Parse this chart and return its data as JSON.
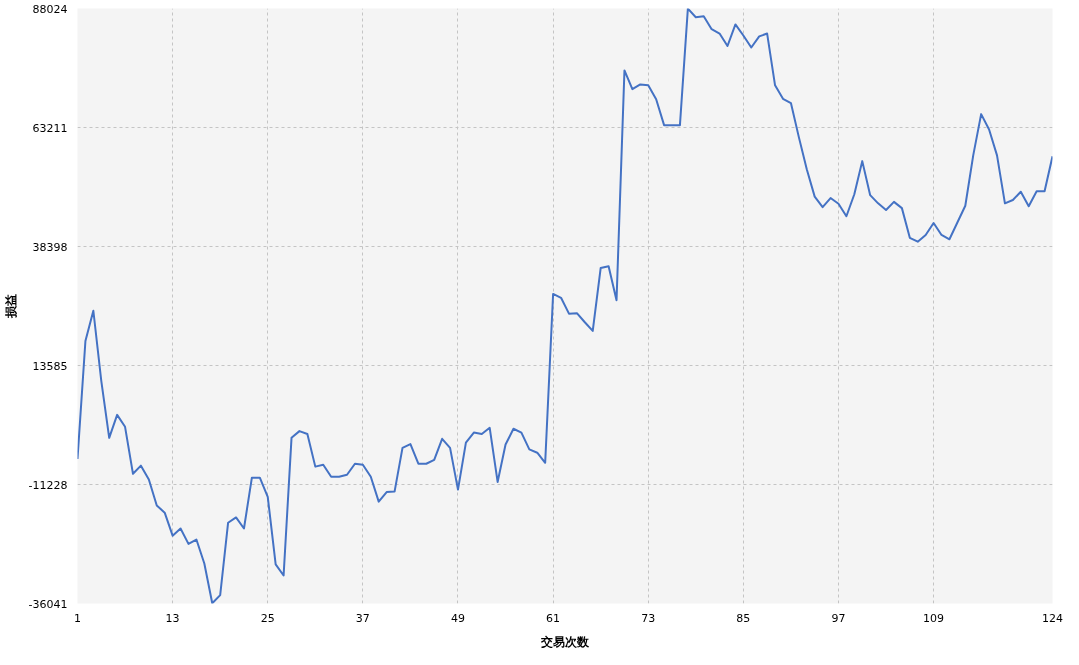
{
  "chart_data": {
    "type": "line",
    "xlabel": "交易次数",
    "ylabel": "损益",
    "color": "#4472c4",
    "line_style": "solid",
    "grid": true,
    "x": [
      1,
      2,
      3,
      4,
      5,
      6,
      7,
      8,
      9,
      10,
      11,
      12,
      13,
      14,
      15,
      16,
      17,
      18,
      19,
      20,
      21,
      22,
      23,
      24,
      25,
      26,
      27,
      28,
      29,
      30,
      31,
      32,
      33,
      34,
      35,
      36,
      37,
      38,
      39,
      40,
      41,
      42,
      43,
      44,
      45,
      46,
      47,
      48,
      49,
      50,
      51,
      52,
      53,
      54,
      55,
      56,
      57,
      58,
      59,
      60,
      61,
      62,
      63,
      64,
      65,
      66,
      67,
      68,
      69,
      70,
      71,
      72,
      73,
      74,
      75,
      76,
      77,
      78,
      79,
      80,
      81,
      82,
      83,
      84,
      85,
      86,
      87,
      88,
      89,
      90,
      91,
      92,
      93,
      94,
      95,
      96,
      97,
      98,
      99,
      100,
      101,
      102,
      103,
      104,
      105,
      106,
      107,
      108,
      109,
      110,
      111,
      112,
      113,
      114,
      115,
      116,
      117,
      118,
      119,
      120,
      121,
      122,
      123,
      124
    ],
    "values": [
      -5900,
      18700,
      25000,
      10400,
      -1500,
      3300,
      800,
      -9000,
      -7300,
      -10200,
      -15600,
      -17100,
      -21900,
      -20400,
      -23600,
      -22700,
      -27700,
      -36000,
      -34300,
      -19200,
      -18100,
      -20400,
      -9800,
      -9800,
      -13800,
      -27900,
      -30200,
      -1500,
      -100,
      -700,
      -7500,
      -7100,
      -9600,
      -9600,
      -9200,
      -6900,
      -7100,
      -9600,
      -14800,
      -12800,
      -12700,
      -3600,
      -2800,
      -6900,
      -6900,
      -6100,
      -1700,
      -3600,
      -12300,
      -2500,
      -400,
      -700,
      600,
      -10700,
      -2900,
      400,
      -400,
      -3900,
      -4600,
      -6700,
      28500,
      27700,
      24400,
      24500,
      22600,
      20800,
      33900,
      34300,
      27200,
      75100,
      71200,
      72200,
      72000,
      69100,
      63700,
      63700,
      63700,
      88000,
      86200,
      86400,
      83700,
      82800,
      80200,
      84700,
      82400,
      79900,
      82200,
      82800,
      72000,
      69200,
      68300,
      61200,
      54500,
      48800,
      46600,
      48500,
      47300,
      44700,
      49300,
      56200,
      49100,
      47400,
      46000,
      47700,
      46400,
      40200,
      39400,
      40800,
      43300,
      40800,
      39900,
      43400,
      46900,
      57400,
      66000,
      62800,
      57400,
      47400,
      48100,
      49800,
      46800,
      49900,
      49900,
      57200
    ],
    "xlim": [
      1,
      124
    ],
    "ylim": [
      -36041,
      88024
    ],
    "xticks": [
      1,
      13,
      25,
      37,
      49,
      61,
      73,
      85,
      97,
      109,
      124
    ],
    "yticks": [
      -36041,
      -11228,
      13585,
      38398,
      63211,
      88024
    ]
  }
}
